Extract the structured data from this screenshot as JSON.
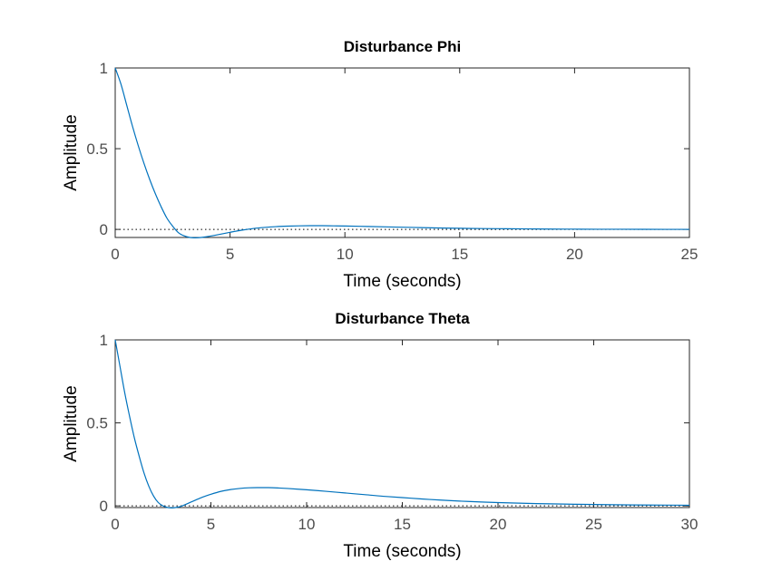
{
  "chart_data": [
    {
      "type": "line",
      "title": "Disturbance Phi",
      "xlabel": "Time (seconds)",
      "ylabel": "Amplitude",
      "xlim": [
        0,
        25
      ],
      "ylim": [
        -0.05,
        1
      ],
      "xticks": [
        0,
        5,
        10,
        15,
        20,
        25
      ],
      "yticks": [
        0,
        0.5,
        1
      ],
      "grid": false,
      "reference_line": {
        "y": 0,
        "style": "dotted",
        "color": "#000000"
      },
      "series": [
        {
          "color": "#0072bd",
          "x": [
            0,
            0.25,
            0.5,
            0.75,
            1,
            1.25,
            1.5,
            1.75,
            2,
            2.25,
            2.5,
            2.75,
            3,
            3.25,
            3.5,
            3.75,
            4,
            4.5,
            5,
            5.5,
            6,
            6.5,
            7,
            7.5,
            8,
            8.5,
            9,
            9.5,
            10,
            11,
            12,
            13,
            14,
            15,
            16,
            17,
            18,
            19,
            20,
            21,
            22,
            23,
            24,
            25
          ],
          "y": [
            1,
            0.9,
            0.77,
            0.64,
            0.52,
            0.41,
            0.31,
            0.22,
            0.14,
            0.07,
            0.02,
            -0.02,
            -0.04,
            -0.05,
            -0.052,
            -0.05,
            -0.045,
            -0.032,
            -0.018,
            -0.005,
            0.005,
            0.012,
            0.017,
            0.02,
            0.022,
            0.023,
            0.023,
            0.022,
            0.021,
            0.018,
            0.015,
            0.012,
            0.009,
            0.007,
            0.005,
            0.004,
            0.003,
            0.002,
            0.0015,
            0.001,
            0.0008,
            0.0005,
            0.0003,
            0.0002
          ]
        }
      ]
    },
    {
      "type": "line",
      "title": "Disturbance Theta",
      "xlabel": "Time (seconds)",
      "ylabel": "Amplitude",
      "xlim": [
        0,
        30
      ],
      "ylim": [
        -0.01,
        1
      ],
      "xticks": [
        0,
        5,
        10,
        15,
        20,
        25,
        30
      ],
      "yticks": [
        0,
        0.5,
        1
      ],
      "grid": false,
      "reference_line": {
        "y": 0,
        "style": "dotted",
        "color": "#000000"
      },
      "series": [
        {
          "color": "#0072bd",
          "x": [
            0,
            0.25,
            0.5,
            0.75,
            1,
            1.25,
            1.5,
            1.75,
            2,
            2.25,
            2.5,
            2.75,
            3,
            3.25,
            3.5,
            4,
            4.5,
            5,
            5.5,
            6,
            6.5,
            7,
            7.5,
            8,
            8.5,
            9,
            10,
            11,
            12,
            13,
            14,
            15,
            16,
            17,
            18,
            19,
            20,
            22,
            24,
            26,
            28,
            30
          ],
          "y": [
            1,
            0.84,
            0.68,
            0.54,
            0.41,
            0.3,
            0.2,
            0.12,
            0.06,
            0.02,
            0,
            -0.01,
            -0.012,
            -0.008,
            0,
            0.025,
            0.05,
            0.07,
            0.087,
            0.098,
            0.105,
            0.109,
            0.11,
            0.11,
            0.108,
            0.105,
            0.097,
            0.088,
            0.078,
            0.068,
            0.058,
            0.05,
            0.042,
            0.035,
            0.029,
            0.024,
            0.02,
            0.014,
            0.01,
            0.007,
            0.005,
            0.004
          ]
        }
      ]
    }
  ]
}
